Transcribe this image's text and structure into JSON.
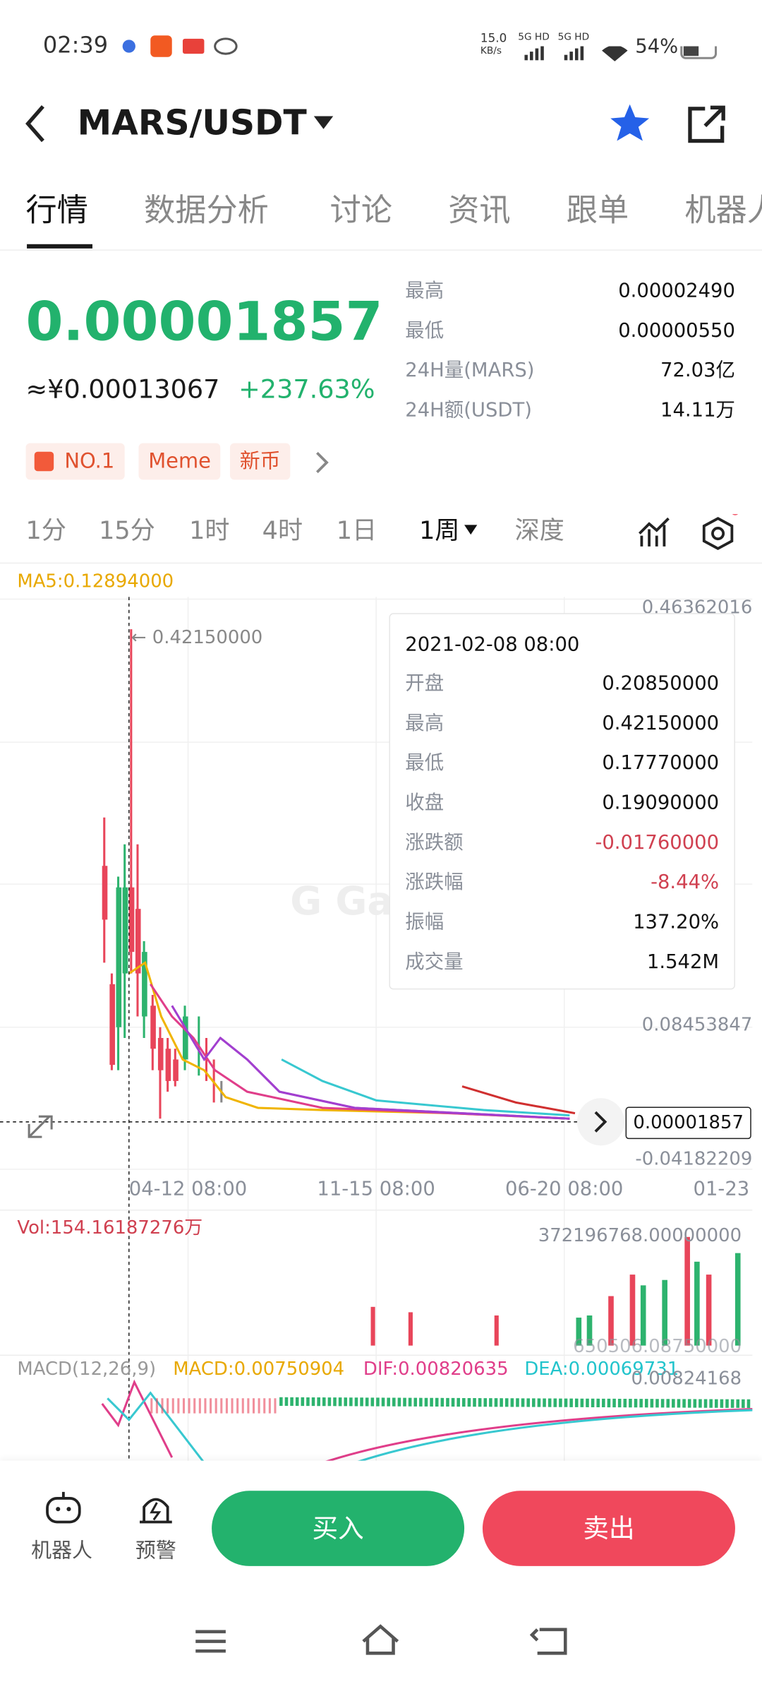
{
  "status": {
    "time": "02:39",
    "speed": "15.0",
    "speed_unit": "KB/s",
    "net1": "5G HD",
    "net2": "5G HD",
    "battery": "54%"
  },
  "header": {
    "pair": "MARS/USDT"
  },
  "tabs": [
    "行情",
    "数据分析",
    "讨论",
    "资讯",
    "跟单",
    "机器人"
  ],
  "price": {
    "last": "0.00001857",
    "cny": "≈¥0.00013067",
    "change": "+237.63%"
  },
  "stats": [
    {
      "label": "最高",
      "value": "0.00002490"
    },
    {
      "label": "最低",
      "value": "0.00000550"
    },
    {
      "label": "24H量(MARS)",
      "value": "72.03亿"
    },
    {
      "label": "24H额(USDT)",
      "value": "14.11万"
    }
  ],
  "tags": [
    "NO.1",
    "Meme",
    "新币"
  ],
  "intervals": [
    "1分",
    "15分",
    "1时",
    "4时",
    "1日",
    "1周",
    "深度"
  ],
  "chart": {
    "ma": "MA5:0.12894000",
    "high_marker": "← 0.42150000",
    "axis": [
      "0.46362016",
      "0.08453847",
      "-0.04182209"
    ],
    "current": "0.00001857",
    "x_labels": [
      "04-12 08:00",
      "11-15 08:00",
      "06-20 08:00",
      "01-23"
    ]
  },
  "tooltip": {
    "date": "2021-02-08 08:00",
    "rows": [
      {
        "label": "开盘",
        "value": "0.20850000"
      },
      {
        "label": "最高",
        "value": "0.42150000"
      },
      {
        "label": "最低",
        "value": "0.17770000"
      },
      {
        "label": "收盘",
        "value": "0.19090000"
      },
      {
        "label": "涨跌额",
        "value": "-0.01760000"
      },
      {
        "label": "涨跌幅",
        "value": "-8.44%"
      },
      {
        "label": "振幅",
        "value": "137.20%"
      },
      {
        "label": "成交量",
        "value": "1.542M"
      }
    ]
  },
  "volume": {
    "label": "Vol:154.16187276万",
    "max": "372196768.00000000",
    "min": "650506.08750000"
  },
  "macd": {
    "label": "MACD(12,26,9)",
    "macd": "MACD:0.00750904",
    "dif": "DIF:0.00820635",
    "dea": "DEA:0.00069731",
    "max": "0.00824168"
  },
  "bottom": {
    "robot": "机器人",
    "alert": "预警",
    "buy": "买入",
    "sell": "卖出"
  }
}
